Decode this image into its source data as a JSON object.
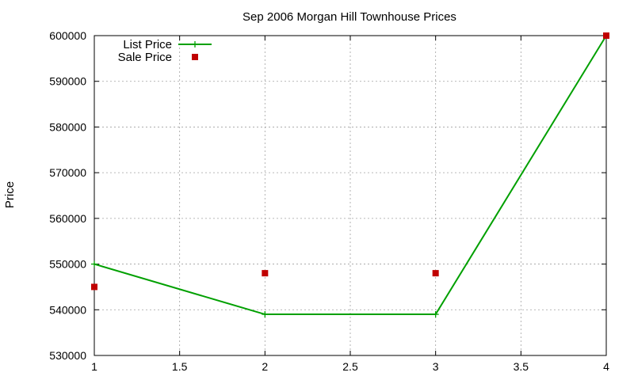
{
  "chart_data": {
    "type": "line",
    "title": "Sep 2006 Morgan Hill Townhouse Prices",
    "xlabel": "",
    "ylabel": "Price",
    "xlim": [
      1,
      4
    ],
    "ylim": [
      530000,
      600000
    ],
    "x_ticks": [
      "1",
      "1.5",
      "2",
      "2.5",
      "3",
      "3.5",
      "4"
    ],
    "x_tick_values": [
      1,
      1.5,
      2,
      2.5,
      3,
      3.5,
      4
    ],
    "y_ticks": [
      "530000",
      "540000",
      "550000",
      "560000",
      "570000",
      "580000",
      "590000",
      "600000"
    ],
    "y_tick_values": [
      530000,
      540000,
      550000,
      560000,
      570000,
      580000,
      590000,
      600000
    ],
    "grid": true,
    "legend_position": "top-left",
    "series": [
      {
        "name": "List Price",
        "style": "line-with-plus-markers",
        "color": "#00a000",
        "x": [
          1,
          2,
          3,
          4
        ],
        "y": [
          550000,
          539000,
          539000,
          600000
        ]
      },
      {
        "name": "Sale Price",
        "style": "square-points",
        "color": "#c00000",
        "x": [
          1,
          2,
          3,
          4
        ],
        "y": [
          545000,
          548000,
          548000,
          600000
        ]
      }
    ]
  }
}
